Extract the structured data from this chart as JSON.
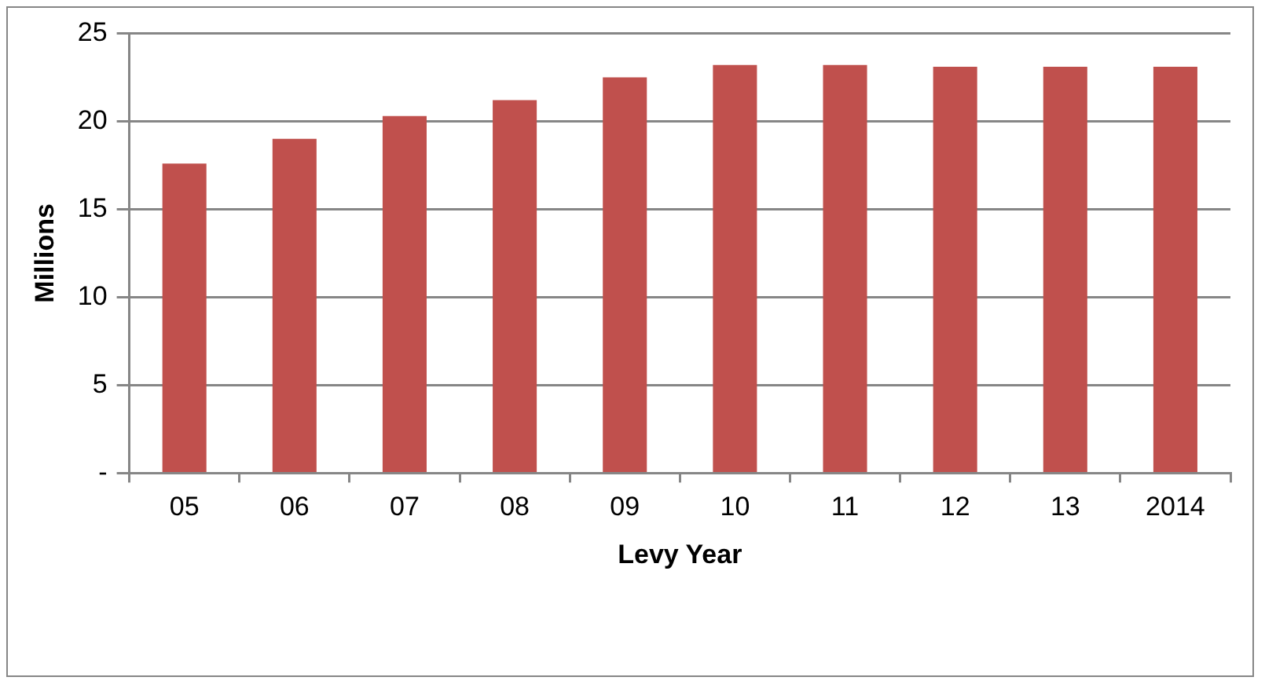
{
  "chart_data": {
    "type": "bar",
    "xlabel": "Levy Year",
    "ylabel": "Millions",
    "categories": [
      "05",
      "06",
      "07",
      "08",
      "09",
      "10",
      "11",
      "12",
      "13",
      "2014"
    ],
    "values": [
      17.6,
      19.0,
      20.3,
      21.2,
      22.5,
      23.2,
      23.2,
      23.1,
      23.1,
      23.1
    ],
    "color": "#c0504d",
    "ylim": [
      0,
      25
    ],
    "yticks": [
      {
        "value": 0,
        "label": "-"
      },
      5,
      10,
      15,
      20,
      25
    ],
    "grid": "y",
    "legend": false
  }
}
